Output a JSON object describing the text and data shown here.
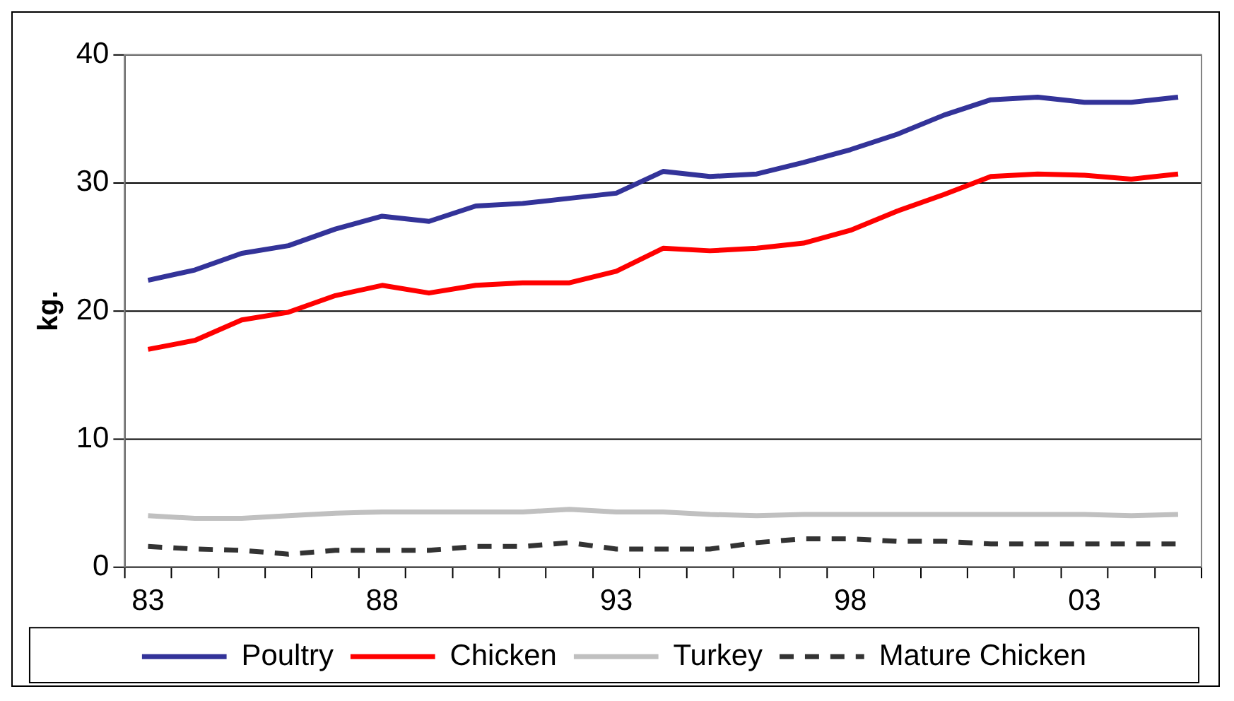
{
  "chart_data": {
    "type": "line",
    "ylabel": "kg.",
    "categories": [
      "83",
      null,
      null,
      null,
      null,
      "88",
      null,
      null,
      null,
      null,
      "93",
      null,
      null,
      null,
      null,
      "98",
      null,
      null,
      null,
      null,
      "03",
      null,
      null
    ],
    "series": [
      {
        "name": "Poultry",
        "color": "#333399",
        "values": [
          22.4,
          23.2,
          24.5,
          25.1,
          26.4,
          27.4,
          27.0,
          28.2,
          28.4,
          28.8,
          29.2,
          30.9,
          30.5,
          30.7,
          31.6,
          32.6,
          33.8,
          35.3,
          36.5,
          36.7,
          36.3,
          36.3,
          36.7
        ]
      },
      {
        "name": "Chicken",
        "color": "#ff0000",
        "values": [
          17.0,
          17.7,
          19.3,
          19.9,
          21.2,
          22.0,
          21.4,
          22.0,
          22.2,
          22.2,
          23.1,
          24.9,
          24.7,
          24.9,
          25.3,
          26.3,
          27.8,
          29.1,
          30.5,
          30.7,
          30.6,
          30.3,
          30.7
        ]
      },
      {
        "name": "Turkey",
        "color": "#c0c0c0",
        "values": [
          4.0,
          3.8,
          3.8,
          4.0,
          4.2,
          4.3,
          4.3,
          4.3,
          4.3,
          4.5,
          4.3,
          4.3,
          4.1,
          4.0,
          4.1,
          4.1,
          4.1,
          4.1,
          4.1,
          4.1,
          4.1,
          4.0,
          4.1
        ]
      },
      {
        "name": "Mature Chicken",
        "color": "#333333",
        "line_style": "dashed",
        "values": [
          1.6,
          1.4,
          1.3,
          1.0,
          1.3,
          1.3,
          1.3,
          1.6,
          1.6,
          1.9,
          1.4,
          1.4,
          1.4,
          1.9,
          2.2,
          2.2,
          2.0,
          2.0,
          1.8,
          1.8,
          1.8,
          1.8,
          1.8
        ]
      }
    ],
    "ylim": [
      0,
      40
    ],
    "yticks": [
      0,
      10,
      20,
      30,
      40
    ],
    "grid": "y",
    "legend": "bottom",
    "marker": "none",
    "line_style": "solid"
  }
}
